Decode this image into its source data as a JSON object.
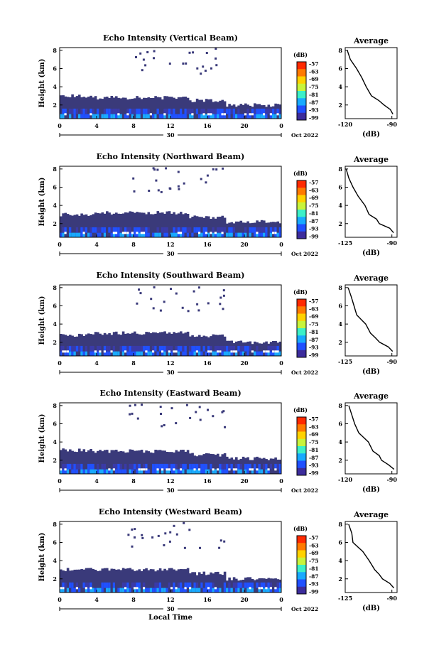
{
  "date_label": "Oct 2022",
  "day_label": "30",
  "xaxis_label": "Local Time",
  "ylabel": "Height (km)",
  "unit_label": "(dB)",
  "average_title": "Average",
  "x_ticks": [
    "0",
    "4",
    "8",
    "12",
    "16",
    "20",
    "0"
  ],
  "y_ticks": [
    "2",
    "4",
    "6",
    "8"
  ],
  "colorbar_labels": [
    "-57",
    "-63",
    "-69",
    "-75",
    "-81",
    "-87",
    "-93",
    "-99"
  ],
  "colorbar_colors": [
    "#ff2a00",
    "#ff7a00",
    "#ffd200",
    "#c8f43c",
    "#3cf0c8",
    "#18aaff",
    "#2050ff",
    "#3c2c9c"
  ],
  "chart_data": [
    {
      "type": "heatmap",
      "title": "Echo Intensity (Vertical Beam)",
      "xlabel": "",
      "ylabel": "Height (km)",
      "xlim": [
        0,
        24
      ],
      "ylim": [
        0.5,
        8.3
      ],
      "cloud_layer": [
        {
          "x": [
            0,
            3.5
          ],
          "top_km": 3.0
        },
        {
          "x": [
            3.5,
            8
          ],
          "top_km": 2.8
        },
        {
          "x": [
            8,
            14
          ],
          "top_km": 2.8
        },
        {
          "x": [
            14,
            18
          ],
          "top_km": 2.5
        },
        {
          "x": [
            18,
            24
          ],
          "top_km": 2.0
        }
      ],
      "average_profile": {
        "xlim": [
          -120,
          -90
        ],
        "x_ticks": [
          "-120",
          "-90"
        ],
        "ylim": [
          0.5,
          8.3
        ],
        "height_km": [
          8.0,
          7.0,
          6.0,
          5.0,
          4.0,
          3.0,
          2.5,
          2.0,
          1.5,
          1.0
        ],
        "intensity_db": [
          -118,
          -116,
          -114,
          -110,
          -106,
          -102,
          -99,
          -96,
          -91,
          -90
        ]
      }
    },
    {
      "type": "heatmap",
      "title": "Echo Intensity (Northward Beam)",
      "xlabel": "",
      "ylabel": "Height (km)",
      "xlim": [
        0,
        24
      ],
      "ylim": [
        0.5,
        8.3
      ],
      "cloud_layer": [
        {
          "x": [
            0,
            3.5
          ],
          "top_km": 3.0
        },
        {
          "x": [
            3.5,
            8
          ],
          "top_km": 3.2
        },
        {
          "x": [
            8,
            14
          ],
          "top_km": 3.2
        },
        {
          "x": [
            14,
            18
          ],
          "top_km": 2.7
        },
        {
          "x": [
            18,
            24
          ],
          "top_km": 2.2
        }
      ],
      "average_profile": {
        "xlim": [
          -125,
          -90
        ],
        "x_ticks": [
          "-125",
          "-90"
        ],
        "ylim": [
          0.5,
          8.3
        ],
        "height_km": [
          8.0,
          7.0,
          6.0,
          5.0,
          4.0,
          3.0,
          2.5,
          2.0,
          1.5,
          1.0
        ],
        "intensity_db": [
          -123,
          -121,
          -118,
          -115,
          -111,
          -106,
          -102,
          -98,
          -92,
          -90
        ]
      }
    },
    {
      "type": "heatmap",
      "title": "Echo Intensity (Southward Beam)",
      "xlabel": "",
      "ylabel": "Height (km)",
      "xlim": [
        0,
        24
      ],
      "ylim": [
        0.5,
        8.3
      ],
      "cloud_layer": [
        {
          "x": [
            0,
            3.5
          ],
          "top_km": 2.8
        },
        {
          "x": [
            3.5,
            8
          ],
          "top_km": 3.0
        },
        {
          "x": [
            8,
            14
          ],
          "top_km": 3.0
        },
        {
          "x": [
            14,
            18
          ],
          "top_km": 2.7
        },
        {
          "x": [
            18,
            24
          ],
          "top_km": 2.0
        }
      ],
      "average_profile": {
        "xlim": [
          -125,
          -90
        ],
        "x_ticks": [
          "-125",
          "-90"
        ],
        "ylim": [
          0.5,
          8.3
        ],
        "height_km": [
          8.0,
          7.0,
          6.0,
          5.0,
          4.0,
          3.0,
          2.5,
          2.0,
          1.5,
          1.0
        ],
        "intensity_db": [
          -123,
          -121,
          -118,
          -115,
          -111,
          -106,
          -102,
          -98,
          -92,
          -90
        ]
      }
    },
    {
      "type": "heatmap",
      "title": "Echo Intensity (Eastward Beam)",
      "xlabel": "",
      "ylabel": "Height (km)",
      "xlim": [
        0,
        24
      ],
      "ylim": [
        0.5,
        8.3
      ],
      "cloud_layer": [
        {
          "x": [
            0,
            3.5
          ],
          "top_km": 3.1
        },
        {
          "x": [
            3.5,
            8
          ],
          "top_km": 3.0
        },
        {
          "x": [
            8,
            14
          ],
          "top_km": 3.0
        },
        {
          "x": [
            14,
            18
          ],
          "top_km": 2.6
        },
        {
          "x": [
            18,
            24
          ],
          "top_km": 2.2
        }
      ],
      "average_profile": {
        "xlim": [
          -120,
          -90
        ],
        "x_ticks": [
          "-120",
          "-90"
        ],
        "ylim": [
          0.5,
          8.3
        ],
        "height_km": [
          8.0,
          7.0,
          6.0,
          5.0,
          4.0,
          3.0,
          2.5,
          2.0,
          1.5,
          1.0
        ],
        "intensity_db": [
          -118,
          -116,
          -114,
          -110,
          -106,
          -102,
          -99,
          -96,
          -91,
          -90
        ]
      }
    },
    {
      "type": "heatmap",
      "title": "Echo Intensity (Westward Beam)",
      "xlabel": "Local Time",
      "ylabel": "Height (km)",
      "xlim": [
        0,
        24
      ],
      "ylim": [
        0.5,
        8.3
      ],
      "cloud_layer": [
        {
          "x": [
            0,
            3.5
          ],
          "top_km": 3.0
        },
        {
          "x": [
            3.5,
            8
          ],
          "top_km": 3.0
        },
        {
          "x": [
            8,
            14
          ],
          "top_km": 3.0
        },
        {
          "x": [
            14,
            18
          ],
          "top_km": 2.6
        },
        {
          "x": [
            18,
            24
          ],
          "top_km": 2.0
        }
      ],
      "average_profile": {
        "xlim": [
          -125,
          -90
        ],
        "x_ticks": [
          "-125",
          "-90"
        ],
        "ylim": [
          0.5,
          8.3
        ],
        "height_km": [
          8.0,
          7.0,
          6.0,
          5.0,
          4.0,
          3.0,
          2.5,
          2.0,
          1.5,
          1.0
        ],
        "intensity_db": [
          -123,
          -121,
          -118,
          -112,
          -108,
          -104,
          -100,
          -97,
          -92,
          -90
        ]
      }
    }
  ]
}
